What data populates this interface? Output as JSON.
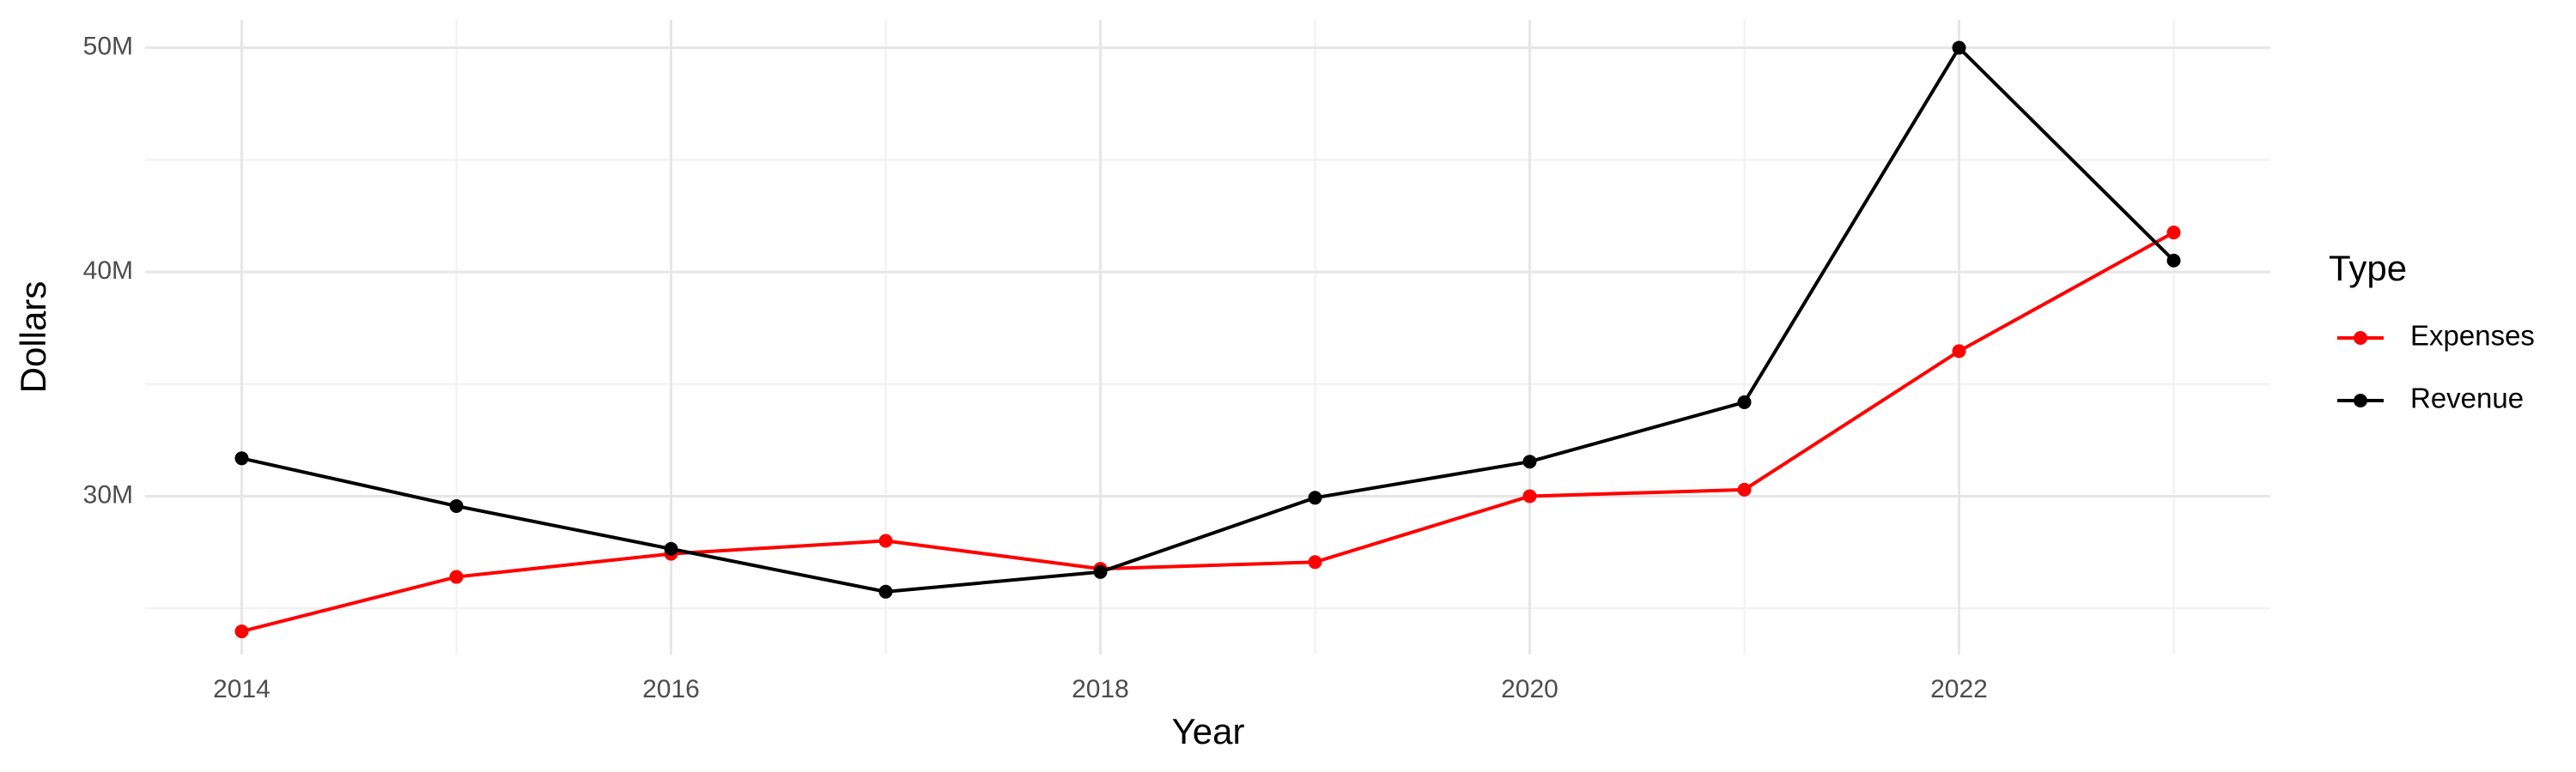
{
  "chart_data": {
    "type": "line",
    "x_label": "Year",
    "y_label": "Dollars",
    "legend_title": "Type",
    "legend_position": "right",
    "x": [
      2014,
      2015,
      2016,
      2017,
      2018,
      2019,
      2020,
      2021,
      2022,
      2023
    ],
    "series": [
      {
        "name": "Expenses",
        "color": "#ff0000",
        "values": [
          23970000,
          26400000,
          27430000,
          28010000,
          26760000,
          27060000,
          30000000,
          30290000,
          36470000,
          41760000
        ]
      },
      {
        "name": "Revenue",
        "color": "#000000",
        "values": [
          31690000,
          29560000,
          27650000,
          25740000,
          26620000,
          29930000,
          31540000,
          34190000,
          50000000,
          40510000
        ]
      }
    ],
    "xlim": [
      2013.55,
      2023.45
    ],
    "xticks": [
      2014,
      2016,
      2018,
      2020,
      2022
    ],
    "xminorticks": [
      2015,
      2017,
      2019,
      2021,
      2023
    ],
    "ylim": [
      22940000,
      51250000
    ],
    "yticks": [
      {
        "value": 30000000,
        "label": "30M"
      },
      {
        "value": 40000000,
        "label": "40M"
      },
      {
        "value": 50000000,
        "label": "50M"
      }
    ],
    "yminorticks": [
      25000000,
      35000000,
      45000000
    ],
    "grid": true
  }
}
